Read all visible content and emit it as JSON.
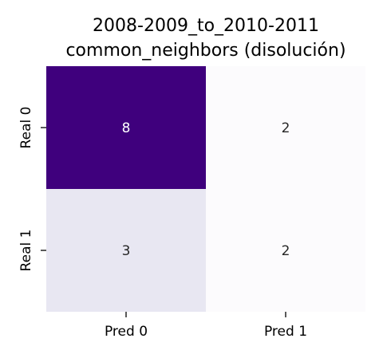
{
  "chart_data": {
    "type": "heatmap",
    "title_lines": [
      "2008-2009_to_2010-2011",
      "common_neighbors (disolución)"
    ],
    "x_categories": [
      "Pred 0",
      "Pred 1"
    ],
    "y_categories": [
      "Real 0",
      "Real 1"
    ],
    "values": [
      [
        8,
        2
      ],
      [
        3,
        2
      ]
    ],
    "colormap": "Purples",
    "vmin": 2,
    "vmax": 8,
    "colorbar": false,
    "grid": false
  }
}
